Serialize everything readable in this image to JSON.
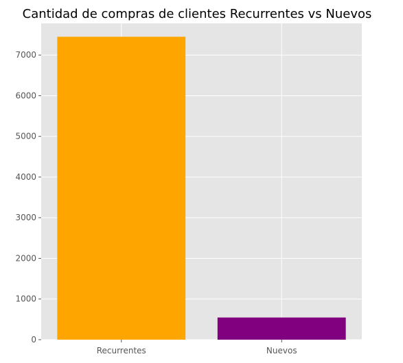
{
  "chart_data": {
    "type": "bar",
    "title": "Cantidad de compras de clientes Recurrentes vs Nuevos",
    "xlabel": "",
    "ylabel": "",
    "categories": [
      "Recurrentes",
      "Nuevos"
    ],
    "values": [
      7450,
      545
    ],
    "colors": [
      "#FFA500",
      "#800080"
    ],
    "ylim": [
      0,
      7780
    ],
    "yticks": [
      0,
      1000,
      2000,
      3000,
      4000,
      5000,
      6000,
      7000
    ],
    "grid": true,
    "style": {
      "plot_background": "#E5E5E5",
      "grid_color": "#FFFFFF",
      "tick_label_color": "#555555"
    }
  }
}
